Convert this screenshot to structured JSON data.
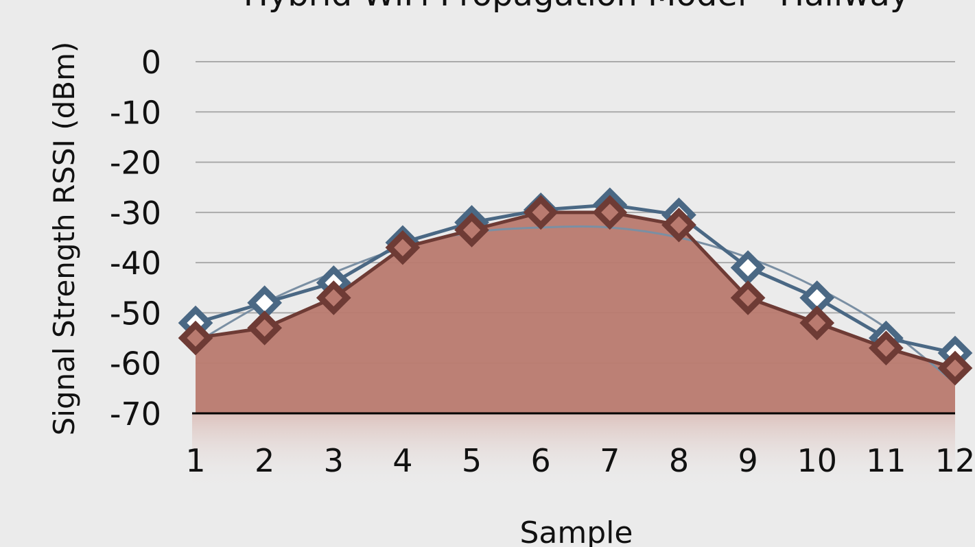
{
  "chart_data": {
    "type": "line",
    "title": "Hybrid WiFi Propagation Model - Hallway",
    "x_label": "Sample",
    "y_label": "Signal Strength RSSI (dBm)",
    "x": [
      1,
      2,
      3,
      4,
      5,
      6,
      7,
      8,
      9,
      10,
      11,
      12
    ],
    "xlim": [
      1,
      12
    ],
    "ylim": [
      -70,
      0
    ],
    "yticks": [
      0,
      -10,
      -20,
      -30,
      -40,
      -50,
      -60,
      -70
    ],
    "grid": true,
    "series": [
      {
        "color": "#4a6884",
        "style": "line",
        "values": [
          -52,
          -48,
          -44,
          -36,
          -32,
          -29.5,
          -28.5,
          -30.5,
          -41,
          -47,
          -55,
          -58
        ]
      },
      {
        "color": "#6e3b35",
        "style": "area",
        "values": [
          -55,
          -53,
          -47,
          -37,
          -33.5,
          -30,
          -30,
          -32.5,
          -47,
          -52,
          -57,
          -61
        ]
      },
      {
        "color": "#7a8fa3",
        "style": "smooth",
        "values": [
          -56,
          -48,
          -42,
          -37,
          -34,
          -33,
          -33,
          -35,
          -39,
          -45,
          -53,
          -64
        ]
      }
    ]
  }
}
